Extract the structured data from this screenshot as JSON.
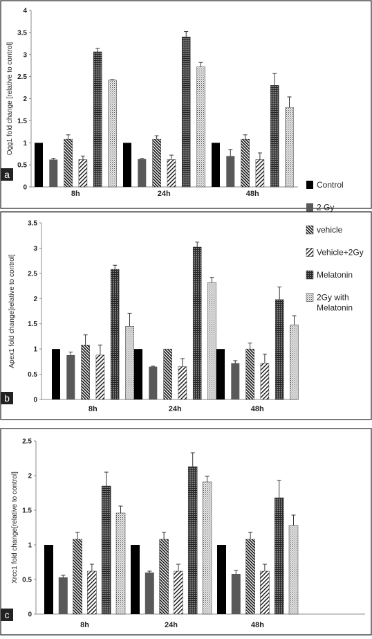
{
  "panel_letters": [
    "a",
    "b",
    "c"
  ],
  "legend": {
    "items": [
      {
        "label": "Control",
        "pattern": "solid-black"
      },
      {
        "label": "2 Gy",
        "pattern": "solid-gray"
      },
      {
        "label": "vehicle",
        "pattern": "hatch-dense-back"
      },
      {
        "label": "Vehicle+2Gy",
        "pattern": "hatch-forward"
      },
      {
        "label": "Melatonin",
        "pattern": "crosshatch"
      },
      {
        "label": "2Gy with",
        "label2": "Melatonin",
        "pattern": "dotted-light"
      }
    ]
  },
  "colors": {
    "control": "#000000",
    "gy2": "#595959",
    "axis": "#888888",
    "panel_label_bg": "#222222"
  },
  "chart_data": [
    {
      "type": "bar",
      "panel": "a",
      "categories": [
        "8h",
        "24h",
        "48h"
      ],
      "ylabel": "Ogg1 fold change [relative to control]",
      "ylim": [
        0,
        4
      ],
      "yticks": [
        "0",
        "0.5",
        "1",
        "1.5",
        "2",
        "2.5",
        "3",
        "3.5",
        "4"
      ],
      "series": [
        {
          "name": "Control",
          "values": [
            1.0,
            1.0,
            1.0
          ],
          "errors": [
            0,
            0,
            0
          ]
        },
        {
          "name": "2 Gy",
          "values": [
            0.62,
            0.63,
            0.7
          ],
          "errors": [
            0.03,
            0.02,
            0.15
          ]
        },
        {
          "name": "vehicle",
          "values": [
            1.08,
            1.08,
            1.08
          ],
          "errors": [
            0.1,
            0.08,
            0.1
          ]
        },
        {
          "name": "Vehicle+2Gy",
          "values": [
            0.62,
            0.62,
            0.62
          ],
          "errors": [
            0.08,
            0.1,
            0.15
          ]
        },
        {
          "name": "Melatonin",
          "values": [
            3.06,
            3.4,
            2.3
          ],
          "errors": [
            0.08,
            0.12,
            0.27
          ]
        },
        {
          "name": "2Gy with Melatonin",
          "values": [
            2.42,
            2.72,
            1.8
          ],
          "errors": [
            0.01,
            0.1,
            0.24
          ]
        }
      ]
    },
    {
      "type": "bar",
      "panel": "b",
      "categories": [
        "8h",
        "24h",
        "48h"
      ],
      "ylabel": "Apex1  fold change[relative to control]",
      "ylim": [
        0,
        3.5
      ],
      "yticks": [
        "0",
        "0.5",
        "1",
        "1.5",
        "2",
        "2.5",
        "3",
        "3.5"
      ],
      "series": [
        {
          "name": "Control",
          "values": [
            1.0,
            1.0,
            1.0
          ],
          "errors": [
            0,
            0,
            0
          ]
        },
        {
          "name": "2 Gy",
          "values": [
            0.88,
            0.65,
            0.72
          ],
          "errors": [
            0.06,
            0.01,
            0.05
          ]
        },
        {
          "name": "vehicle",
          "values": [
            1.08,
            1.0,
            1.0
          ],
          "errors": [
            0.2,
            0,
            0.12
          ]
        },
        {
          "name": "Vehicle+2Gy",
          "values": [
            0.88,
            0.65,
            0.72
          ],
          "errors": [
            0.2,
            0.16,
            0.18
          ]
        },
        {
          "name": "Melatonin",
          "values": [
            2.58,
            3.02,
            1.98
          ],
          "errors": [
            0.08,
            0.1,
            0.25
          ]
        },
        {
          "name": "2Gy with Melatonin",
          "values": [
            1.45,
            2.32,
            1.48
          ],
          "errors": [
            0.26,
            0.1,
            0.18
          ]
        }
      ]
    },
    {
      "type": "bar",
      "panel": "c",
      "categories": [
        "8h",
        "24h",
        "48h"
      ],
      "ylabel": "Xrcc1 fold change[relative to control]",
      "ylim": [
        0,
        2.5
      ],
      "yticks": [
        "0",
        "0.5",
        "1",
        "1.5",
        "2",
        "2.5"
      ],
      "series": [
        {
          "name": "Control",
          "values": [
            1.0,
            1.0,
            1.0
          ],
          "errors": [
            0,
            0,
            0
          ]
        },
        {
          "name": "2 Gy",
          "values": [
            0.53,
            0.6,
            0.58
          ],
          "errors": [
            0.03,
            0.02,
            0.05
          ]
        },
        {
          "name": "vehicle",
          "values": [
            1.08,
            1.08,
            1.08
          ],
          "errors": [
            0.1,
            0.1,
            0.1
          ]
        },
        {
          "name": "Vehicle+2Gy",
          "values": [
            0.62,
            0.62,
            0.62
          ],
          "errors": [
            0.1,
            0.1,
            0.1
          ]
        },
        {
          "name": "Melatonin",
          "values": [
            1.85,
            2.13,
            1.68
          ],
          "errors": [
            0.2,
            0.2,
            0.25
          ]
        },
        {
          "name": "2Gy with Melatonin",
          "values": [
            1.46,
            1.91,
            1.28
          ],
          "errors": [
            0.1,
            0.08,
            0.15
          ]
        }
      ]
    }
  ]
}
